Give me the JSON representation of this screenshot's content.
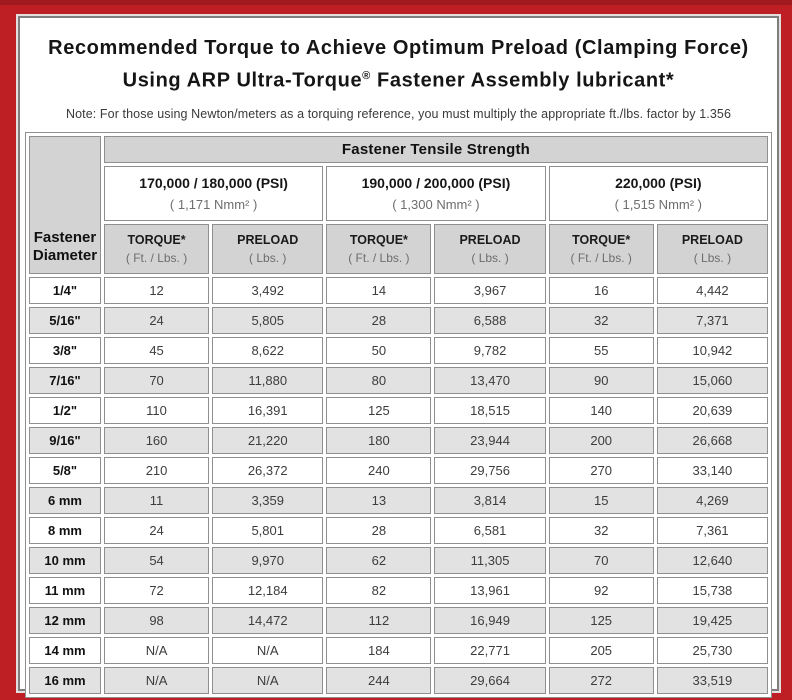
{
  "frame": {
    "accent_red": "#bd1f25",
    "panel_border_gray": "#7e7e7e"
  },
  "title": {
    "line1": "Recommended Torque to Achieve Optimum Preload (Clamping Force)",
    "line2_pre": "Using ARP Ultra-Torque",
    "line2_reg": "®",
    "line2_post": " Fastener Assembly lubricant*"
  },
  "note": "Note: For those using Newton/meters as a torquing reference, you must multiply the appropriate ft./lbs. factor by 1.356",
  "table": {
    "corner_header": "Fastener Diameter",
    "tensile_header": "Fastener Tensile Strength",
    "groups": [
      {
        "psi": "170,000 / 180,000 (PSI)",
        "nmm": "( 1,171 Nmm² )"
      },
      {
        "psi": "190,000 / 200,000 (PSI)",
        "nmm": "( 1,300 Nmm² )"
      },
      {
        "psi": "220,000 (PSI)",
        "nmm": "( 1,515 Nmm² )"
      }
    ],
    "col_headers": [
      {
        "label": "TORQUE*",
        "sub": "( Ft. / Lbs. )"
      },
      {
        "label": "PRELOAD",
        "sub": "( Lbs. )"
      }
    ],
    "rows": [
      {
        "diameter": "1/4\"",
        "cells": [
          "12",
          "3,492",
          "14",
          "3,967",
          "16",
          "4,442"
        ]
      },
      {
        "diameter": "5/16\"",
        "cells": [
          "24",
          "5,805",
          "28",
          "6,588",
          "32",
          "7,371"
        ]
      },
      {
        "diameter": "3/8\"",
        "cells": [
          "45",
          "8,622",
          "50",
          "9,782",
          "55",
          "10,942"
        ]
      },
      {
        "diameter": "7/16\"",
        "cells": [
          "70",
          "11,880",
          "80",
          "13,470",
          "90",
          "15,060"
        ]
      },
      {
        "diameter": "1/2\"",
        "cells": [
          "110",
          "16,391",
          "125",
          "18,515",
          "140",
          "20,639"
        ]
      },
      {
        "diameter": "9/16\"",
        "cells": [
          "160",
          "21,220",
          "180",
          "23,944",
          "200",
          "26,668"
        ]
      },
      {
        "diameter": "5/8\"",
        "cells": [
          "210",
          "26,372",
          "240",
          "29,756",
          "270",
          "33,140"
        ]
      },
      {
        "diameter": "6 mm",
        "cells": [
          "11",
          "3,359",
          "13",
          "3,814",
          "15",
          "4,269"
        ]
      },
      {
        "diameter": "8 mm",
        "cells": [
          "24",
          "5,801",
          "28",
          "6,581",
          "32",
          "7,361"
        ]
      },
      {
        "diameter": "10 mm",
        "cells": [
          "54",
          "9,970",
          "62",
          "11,305",
          "70",
          "12,640"
        ]
      },
      {
        "diameter": "11 mm",
        "cells": [
          "72",
          "12,184",
          "82",
          "13,961",
          "92",
          "15,738"
        ]
      },
      {
        "diameter": "12 mm",
        "cells": [
          "98",
          "14,472",
          "112",
          "16,949",
          "125",
          "19,425"
        ]
      },
      {
        "diameter": "14 mm",
        "cells": [
          "N/A",
          "N/A",
          "184",
          "22,771",
          "205",
          "25,730"
        ]
      },
      {
        "diameter": "16 mm",
        "cells": [
          "N/A",
          "N/A",
          "244",
          "29,664",
          "272",
          "33,519"
        ]
      }
    ]
  }
}
